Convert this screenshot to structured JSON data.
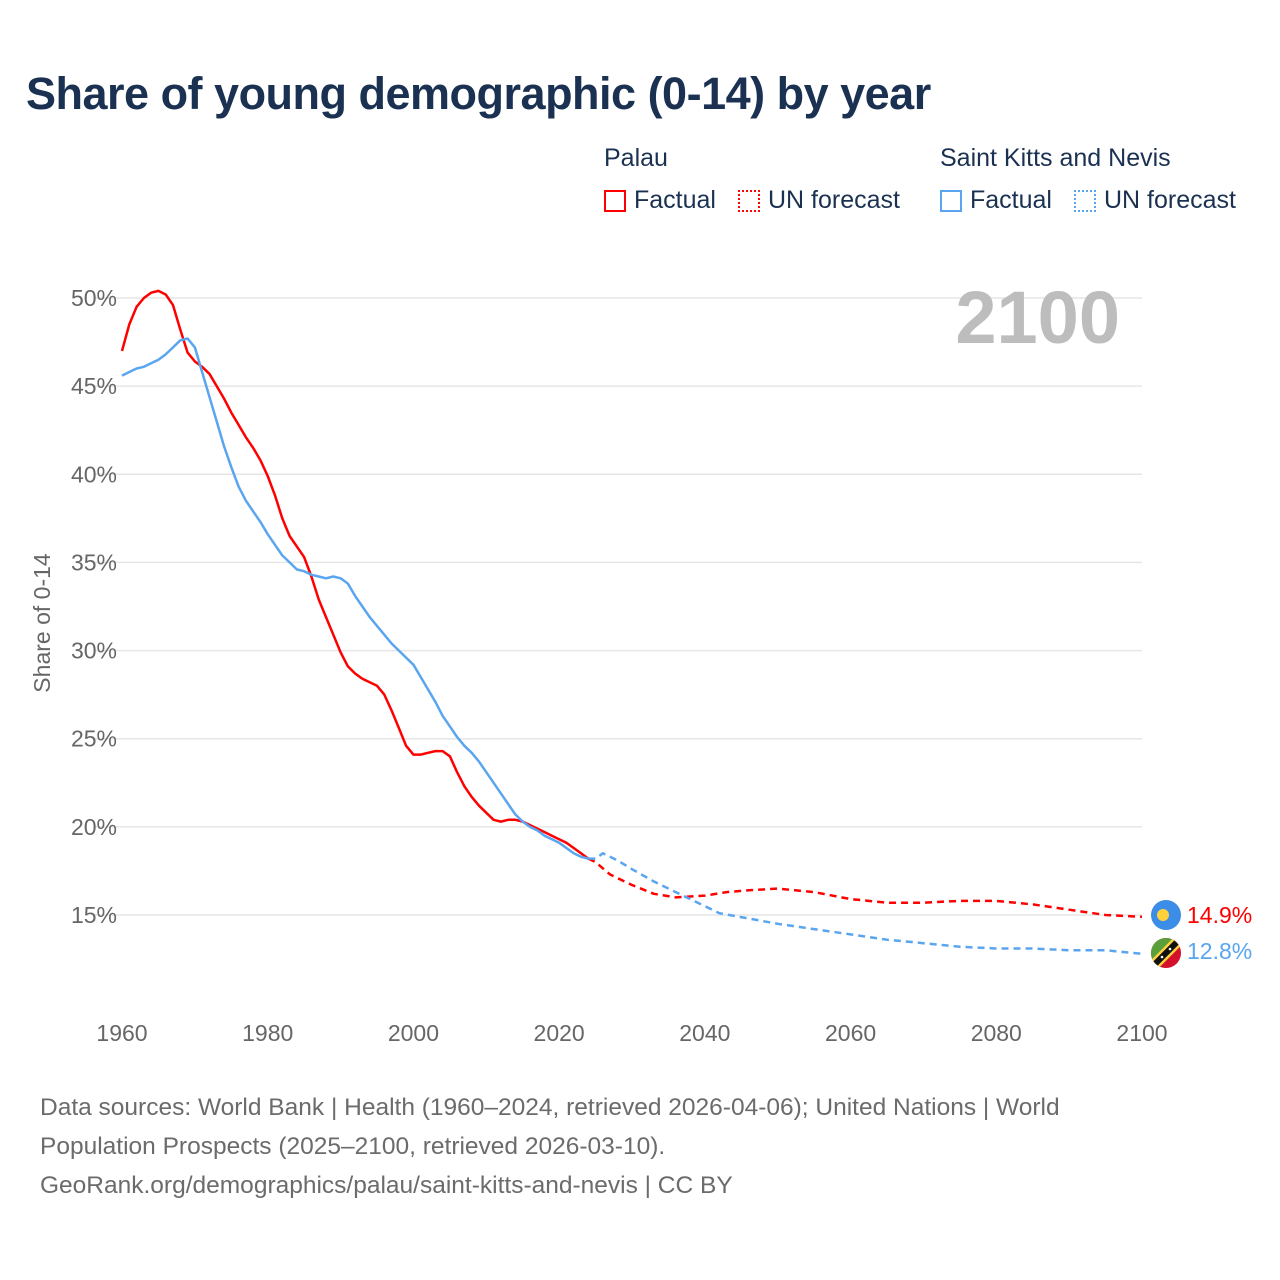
{
  "title": "Share of young demographic (0-14) by year",
  "legend": {
    "groups": [
      {
        "country": "Palau",
        "factual_label": "Factual",
        "forecast_label": "UN forecast",
        "color": "#ff0000"
      },
      {
        "country": "Saint Kitts and Nevis",
        "factual_label": "Factual",
        "forecast_label": "UN forecast",
        "color": "#5aa5f0"
      }
    ]
  },
  "year_display": "2100",
  "end_labels": {
    "palau": "14.9%",
    "skn": "12.8%"
  },
  "chart_data": {
    "type": "line",
    "title": "Share of young demographic (0-14) by year",
    "xlabel": "",
    "ylabel": "Share of 0-14",
    "xlim": [
      1960,
      2100
    ],
    "ylim": [
      12,
      50
    ],
    "x_ticks": [
      "1960",
      "1980",
      "2000",
      "2020",
      "2040",
      "2060",
      "2080",
      "2100"
    ],
    "y_ticks": [
      "15%",
      "20%",
      "25%",
      "30%",
      "35%",
      "40%",
      "45%",
      "50%"
    ],
    "y_tick_values": [
      15,
      20,
      25,
      30,
      35,
      40,
      45,
      50
    ],
    "x_tick_values": [
      1960,
      1980,
      2000,
      2020,
      2040,
      2060,
      2080,
      2100
    ],
    "grid": true,
    "legend_position": "top-right",
    "series": [
      {
        "name": "Palau Factual",
        "color": "#ff0000",
        "dashed": false,
        "points": [
          [
            1960,
            47.0
          ],
          [
            1961,
            48.5
          ],
          [
            1962,
            49.5
          ],
          [
            1963,
            50.0
          ],
          [
            1964,
            50.3
          ],
          [
            1965,
            50.4
          ],
          [
            1966,
            50.2
          ],
          [
            1967,
            49.6
          ],
          [
            1968,
            48.2
          ],
          [
            1969,
            46.9
          ],
          [
            1970,
            46.4
          ],
          [
            1971,
            46.1
          ],
          [
            1972,
            45.7
          ],
          [
            1973,
            45.0
          ],
          [
            1974,
            44.3
          ],
          [
            1975,
            43.5
          ],
          [
            1976,
            42.8
          ],
          [
            1977,
            42.1
          ],
          [
            1978,
            41.5
          ],
          [
            1979,
            40.8
          ],
          [
            1980,
            39.9
          ],
          [
            1981,
            38.8
          ],
          [
            1982,
            37.5
          ],
          [
            1983,
            36.5
          ],
          [
            1984,
            35.9
          ],
          [
            1985,
            35.3
          ],
          [
            1986,
            34.2
          ],
          [
            1987,
            32.9
          ],
          [
            1988,
            31.9
          ],
          [
            1989,
            30.9
          ],
          [
            1990,
            29.9
          ],
          [
            1991,
            29.1
          ],
          [
            1992,
            28.7
          ],
          [
            1993,
            28.4
          ],
          [
            1994,
            28.2
          ],
          [
            1995,
            28.0
          ],
          [
            1996,
            27.5
          ],
          [
            1997,
            26.6
          ],
          [
            1998,
            25.6
          ],
          [
            1999,
            24.6
          ],
          [
            2000,
            24.1
          ],
          [
            2001,
            24.1
          ],
          [
            2002,
            24.2
          ],
          [
            2003,
            24.3
          ],
          [
            2004,
            24.3
          ],
          [
            2005,
            24.0
          ],
          [
            2006,
            23.1
          ],
          [
            2007,
            22.3
          ],
          [
            2008,
            21.7
          ],
          [
            2009,
            21.2
          ],
          [
            2010,
            20.8
          ],
          [
            2011,
            20.4
          ],
          [
            2012,
            20.3
          ],
          [
            2013,
            20.4
          ],
          [
            2014,
            20.4
          ],
          [
            2015,
            20.3
          ],
          [
            2016,
            20.1
          ],
          [
            2017,
            19.9
          ],
          [
            2018,
            19.7
          ],
          [
            2019,
            19.5
          ],
          [
            2020,
            19.3
          ],
          [
            2021,
            19.1
          ],
          [
            2022,
            18.8
          ],
          [
            2023,
            18.5
          ],
          [
            2024,
            18.2
          ]
        ]
      },
      {
        "name": "Palau UN forecast",
        "color": "#ff0000",
        "dashed": true,
        "points": [
          [
            2024,
            18.2
          ],
          [
            2025,
            18.0
          ],
          [
            2027,
            17.3
          ],
          [
            2030,
            16.7
          ],
          [
            2033,
            16.2
          ],
          [
            2036,
            16.0
          ],
          [
            2040,
            16.1
          ],
          [
            2043,
            16.3
          ],
          [
            2046,
            16.4
          ],
          [
            2050,
            16.5
          ],
          [
            2055,
            16.3
          ],
          [
            2060,
            15.9
          ],
          [
            2065,
            15.7
          ],
          [
            2070,
            15.7
          ],
          [
            2075,
            15.8
          ],
          [
            2080,
            15.8
          ],
          [
            2085,
            15.6
          ],
          [
            2090,
            15.3
          ],
          [
            2095,
            15.0
          ],
          [
            2100,
            14.9
          ]
        ]
      },
      {
        "name": "Saint Kitts and Nevis Factual",
        "color": "#5aa5f0",
        "dashed": false,
        "points": [
          [
            1960,
            45.6
          ],
          [
            1961,
            45.8
          ],
          [
            1962,
            46.0
          ],
          [
            1963,
            46.1
          ],
          [
            1964,
            46.3
          ],
          [
            1965,
            46.5
          ],
          [
            1966,
            46.8
          ],
          [
            1967,
            47.2
          ],
          [
            1968,
            47.6
          ],
          [
            1969,
            47.7
          ],
          [
            1970,
            47.2
          ],
          [
            1971,
            45.8
          ],
          [
            1972,
            44.4
          ],
          [
            1973,
            43.0
          ],
          [
            1974,
            41.6
          ],
          [
            1975,
            40.4
          ],
          [
            1976,
            39.3
          ],
          [
            1977,
            38.5
          ],
          [
            1978,
            37.9
          ],
          [
            1979,
            37.3
          ],
          [
            1980,
            36.6
          ],
          [
            1981,
            36.0
          ],
          [
            1982,
            35.4
          ],
          [
            1983,
            35.0
          ],
          [
            1984,
            34.6
          ],
          [
            1985,
            34.5
          ],
          [
            1986,
            34.3
          ],
          [
            1987,
            34.2
          ],
          [
            1988,
            34.1
          ],
          [
            1989,
            34.2
          ],
          [
            1990,
            34.1
          ],
          [
            1991,
            33.8
          ],
          [
            1992,
            33.1
          ],
          [
            1993,
            32.5
          ],
          [
            1994,
            31.9
          ],
          [
            1995,
            31.4
          ],
          [
            1996,
            30.9
          ],
          [
            1997,
            30.4
          ],
          [
            1998,
            30.0
          ],
          [
            1999,
            29.6
          ],
          [
            2000,
            29.2
          ],
          [
            2001,
            28.5
          ],
          [
            2002,
            27.8
          ],
          [
            2003,
            27.1
          ],
          [
            2004,
            26.3
          ],
          [
            2005,
            25.7
          ],
          [
            2006,
            25.1
          ],
          [
            2007,
            24.6
          ],
          [
            2008,
            24.2
          ],
          [
            2009,
            23.7
          ],
          [
            2010,
            23.1
          ],
          [
            2011,
            22.5
          ],
          [
            2012,
            21.9
          ],
          [
            2013,
            21.3
          ],
          [
            2014,
            20.7
          ],
          [
            2015,
            20.3
          ],
          [
            2016,
            20.0
          ],
          [
            2017,
            19.8
          ],
          [
            2018,
            19.5
          ],
          [
            2019,
            19.3
          ],
          [
            2020,
            19.1
          ],
          [
            2021,
            18.8
          ],
          [
            2022,
            18.5
          ],
          [
            2023,
            18.3
          ],
          [
            2024,
            18.2
          ]
        ]
      },
      {
        "name": "Saint Kitts and Nevis UN forecast",
        "color": "#5aa5f0",
        "dashed": true,
        "points": [
          [
            2024,
            18.2
          ],
          [
            2025,
            18.2
          ],
          [
            2026,
            18.5
          ],
          [
            2028,
            18.1
          ],
          [
            2030,
            17.6
          ],
          [
            2033,
            16.9
          ],
          [
            2036,
            16.3
          ],
          [
            2040,
            15.5
          ],
          [
            2042,
            15.1
          ],
          [
            2046,
            14.8
          ],
          [
            2050,
            14.5
          ],
          [
            2055,
            14.2
          ],
          [
            2060,
            13.9
          ],
          [
            2065,
            13.6
          ],
          [
            2070,
            13.4
          ],
          [
            2075,
            13.2
          ],
          [
            2080,
            13.1
          ],
          [
            2085,
            13.1
          ],
          [
            2090,
            13.0
          ],
          [
            2095,
            13.0
          ],
          [
            2100,
            12.8
          ]
        ]
      }
    ]
  },
  "footer": {
    "line1": "Data sources: World Bank | Health (1960–2024, retrieved 2026-04-06); United Nations | World",
    "line2": "Population Prospects (2025–2100, retrieved 2026-03-10).",
    "line3": "GeoRank.org/demographics/palau/saint-kitts-and-nevis | CC BY"
  }
}
